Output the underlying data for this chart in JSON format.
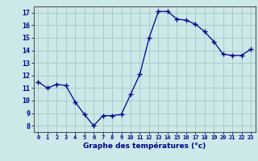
{
  "x": [
    0,
    1,
    2,
    3,
    4,
    5,
    6,
    7,
    8,
    9,
    10,
    11,
    12,
    13,
    14,
    15,
    16,
    17,
    18,
    19,
    20,
    21,
    22,
    23
  ],
  "y": [
    11.5,
    11.0,
    11.3,
    11.2,
    9.9,
    8.9,
    8.0,
    8.8,
    8.8,
    8.9,
    10.5,
    12.1,
    15.0,
    17.1,
    17.1,
    16.5,
    16.4,
    16.1,
    15.5,
    14.7,
    13.7,
    13.6,
    13.6,
    14.1
  ],
  "xlabel": "Graphe des températures (°c)",
  "ylabel_ticks": [
    8,
    9,
    10,
    11,
    12,
    13,
    14,
    15,
    16,
    17
  ],
  "ylim": [
    7.5,
    17.5
  ],
  "xlim": [
    -0.5,
    23.5
  ],
  "bg_color": "#cce8e8",
  "grid_color": "#aacccc",
  "line_color": "#00008b",
  "marker_color": "#00008b",
  "xlabel_color": "#00008b",
  "xtick_color": "#00008b",
  "ytick_color": "#00008b",
  "axis_color": "#555555"
}
